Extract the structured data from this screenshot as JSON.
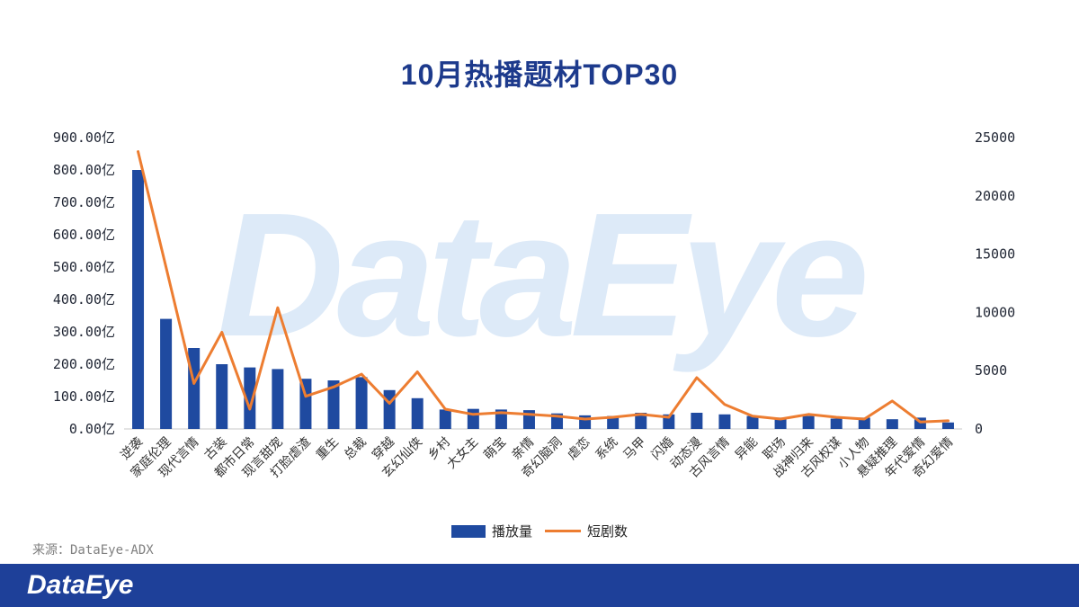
{
  "title": "10月热播题材TOP30",
  "watermark": "DataEye",
  "source": "来源：DataEye-ADX",
  "footer": {
    "logo": "DataEye"
  },
  "colors": {
    "bar": "#1f4aa0",
    "line": "#ed7d31",
    "title": "#1d3a8c",
    "watermark": "#ddeaf8",
    "footer_bg": "#1e4099",
    "axis_text": "#1f2533"
  },
  "legend": [
    {
      "label": "播放量",
      "marker": "bar"
    },
    {
      "label": "短剧数",
      "marker": "line"
    }
  ],
  "chart_data": {
    "type": "bar+line combo",
    "title": "10月热播题材TOP30",
    "grid": false,
    "legend_position": "bottom",
    "categories": [
      "逆袭",
      "家庭伦理",
      "现代言情",
      "古装",
      "都市日常",
      "现言甜宠",
      "打脸虐渣",
      "重生",
      "总裁",
      "穿越",
      "玄幻仙侠",
      "乡村",
      "大女主",
      "萌宝",
      "亲情",
      "奇幻脑洞",
      "虐恋",
      "系统",
      "马甲",
      "闪婚",
      "动态漫",
      "古风言情",
      "异能",
      "职场",
      "战神归来",
      "古风权谋",
      "小人物",
      "悬疑推理",
      "年代爱情",
      "奇幻爱情"
    ],
    "series": [
      {
        "name": "播放量",
        "type": "bar",
        "axis": "left",
        "unit": "亿",
        "values": [
          800,
          340,
          250,
          200,
          190,
          185,
          155,
          150,
          160,
          120,
          95,
          60,
          62,
          60,
          58,
          48,
          42,
          40,
          50,
          45,
          50,
          45,
          40,
          35,
          40,
          32,
          35,
          30,
          35,
          20
        ]
      },
      {
        "name": "短剧数",
        "type": "line",
        "axis": "right",
        "values": [
          23800,
          13900,
          3900,
          8300,
          1700,
          10400,
          2800,
          3600,
          4700,
          2200,
          4900,
          1700,
          1250,
          1400,
          1250,
          1100,
          850,
          1000,
          1250,
          1000,
          4400,
          2100,
          1100,
          850,
          1250,
          1000,
          850,
          2400,
          600,
          700
        ]
      }
    ],
    "left_axis": {
      "min": 0,
      "max": 900,
      "ticks": [
        "900.00亿",
        "800.00亿",
        "700.00亿",
        "600.00亿",
        "500.00亿",
        "400.00亿",
        "300.00亿",
        "200.00亿",
        "100.00亿",
        "0.00亿"
      ]
    },
    "right_axis": {
      "min": 0,
      "max": 25000,
      "ticks": [
        "25000",
        "20000",
        "15000",
        "10000",
        "5000",
        "0"
      ]
    }
  }
}
